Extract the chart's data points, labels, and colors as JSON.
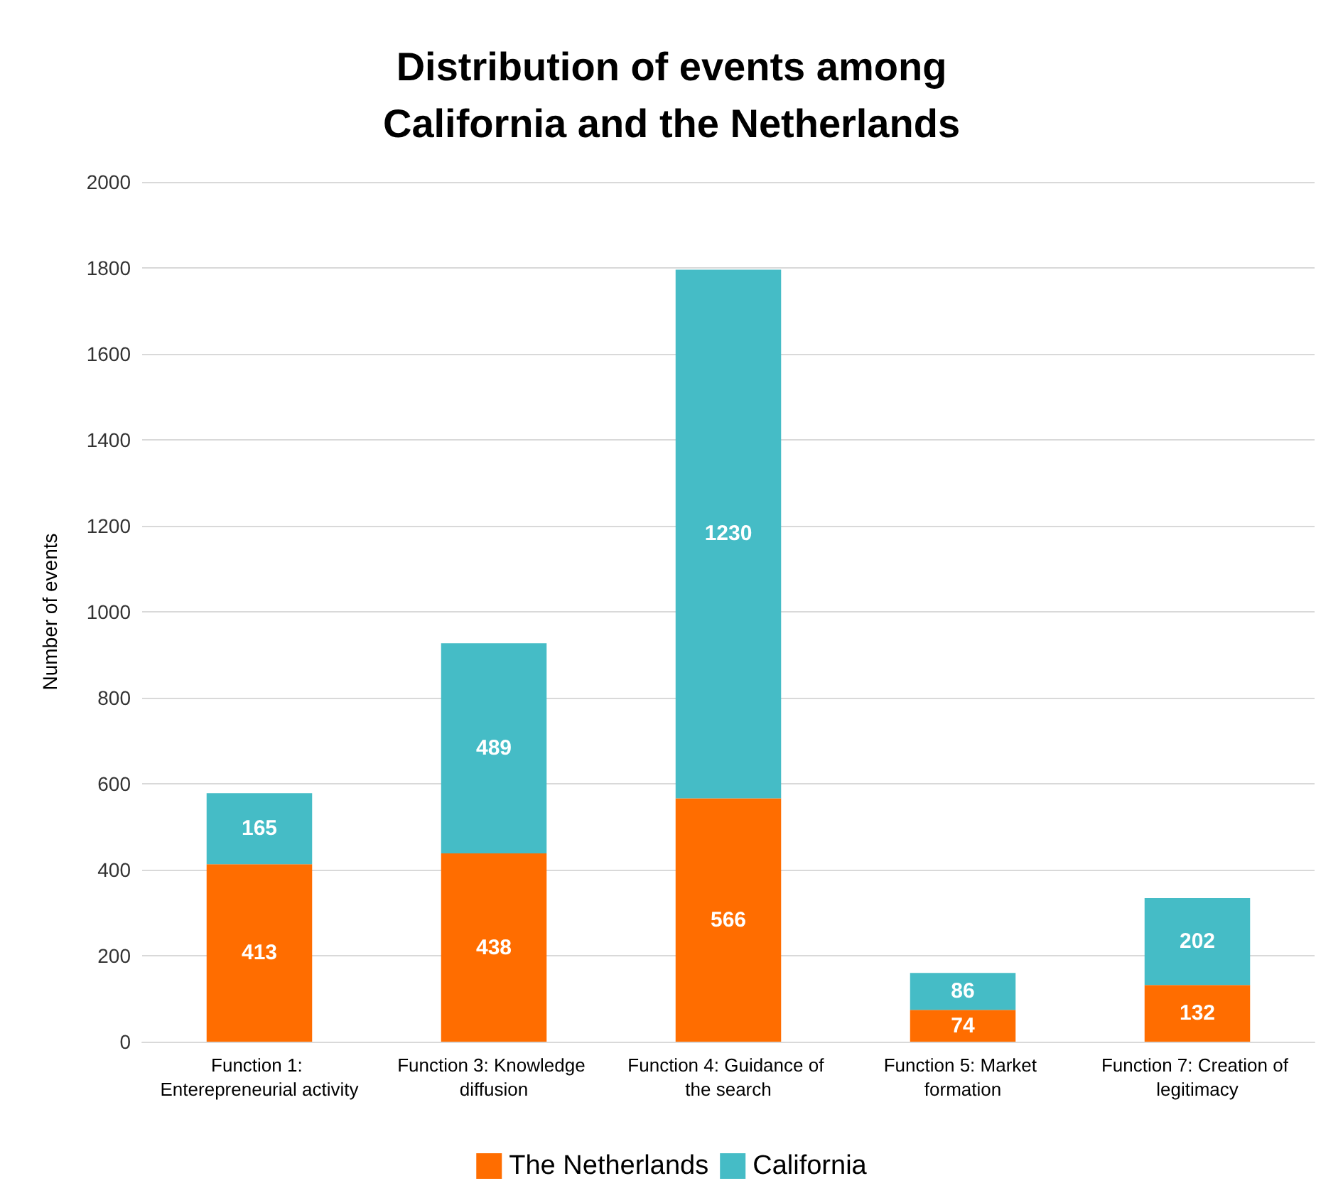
{
  "chart_data": {
    "type": "bar",
    "title": "Distribution of events among\nCalifornia and the Netherlands",
    "ylabel": "Number of events",
    "categories": [
      "Function 1: Enterepreneurial activity",
      "Function 3: Knowledge diffusion",
      "Function 4: Guidance of the search",
      "Function 5: Market formation",
      "Function 7: Creation of legitimacy"
    ],
    "series": [
      {
        "name": "The Netherlands",
        "color": "#ff6d00",
        "values": [
          413,
          438,
          566,
          74,
          132
        ]
      },
      {
        "name": "California",
        "color": "#45bcc6",
        "values": [
          165,
          489,
          1230,
          86,
          202
        ]
      }
    ],
    "stacked": true,
    "data_labels": true,
    "ylim": [
      0,
      2000
    ],
    "yticks": [
      0,
      200,
      400,
      600,
      800,
      1000,
      1200,
      1400,
      1600,
      1800,
      2000
    ],
    "grid": "y",
    "legend": "bottom"
  }
}
